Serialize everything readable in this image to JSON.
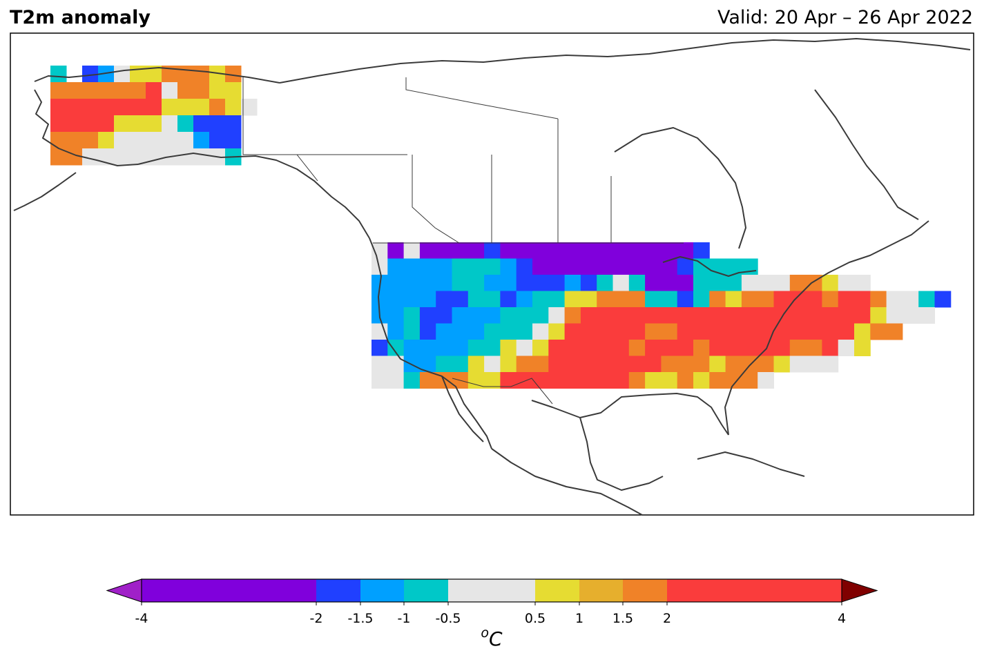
{
  "header": {
    "title": "T2m anomaly",
    "valid": "Valid: 20 Apr – 26 Apr 2022"
  },
  "colorbar": {
    "unit_base": "C",
    "unit_super": "o",
    "extend": "both",
    "under_color": "#a020c8",
    "over_color": "#800000",
    "bins": [
      {
        "from": -4,
        "to": -2,
        "color": "#8000dc"
      },
      {
        "from": -2,
        "to": -1.5,
        "color": "#2040ff"
      },
      {
        "from": -1.5,
        "to": -1,
        "color": "#00a0ff"
      },
      {
        "from": -1,
        "to": -0.5,
        "color": "#00c8c8"
      },
      {
        "from": -0.5,
        "to": 0.5,
        "color": "#e6e6e6"
      },
      {
        "from": 0.5,
        "to": 1,
        "color": "#e6dc32"
      },
      {
        "from": 1,
        "to": 1.5,
        "color": "#e6af2d"
      },
      {
        "from": 1.5,
        "to": 2,
        "color": "#f08228"
      },
      {
        "from": 2,
        "to": 4,
        "color": "#fa3c3c"
      }
    ],
    "tick_labels": [
      "-4",
      "-2",
      "-1.5",
      "-1",
      "-0.5",
      "0.5",
      "1",
      "1.5",
      "2",
      "4"
    ]
  },
  "map_data": {
    "region": "North America",
    "variable": "2 m temperature anomaly",
    "alaska_rows": [
      "CBNA-YYOOOYO",
      "OOOOOOR-OOYY",
      "RRRRRRRYYYOY-",
      "RRRRYYY-CNNN",
      "OOOY-----ANN",
      "OO---------C"
    ],
    "conus_rows": [
      "-P-PPPPNPPPPPPPPPPPPN",
      "-AAAACCCANPPPPPPPPPNCCCC",
      "AAAAACCAANNNANC-CPPPCCC---OOY--",
      "AAAANNCCNACCYYOOOCCNCOYOORRRORRO--CN",
      "AACNNAAACCC-ORRRRRRRRRRRRRRRRRRY---",
      "-ACNAAACCC-YRRRRROORRRRRRRRRRRYOO",
      "NCAAAACCY-YRRRRRORRRORRRRROOR-Y",
      "--AACCY-YOORRRRRRROOOYOOOY---",
      "--COOOYYRRRRRRRROYYOYOOO-"
    ]
  }
}
